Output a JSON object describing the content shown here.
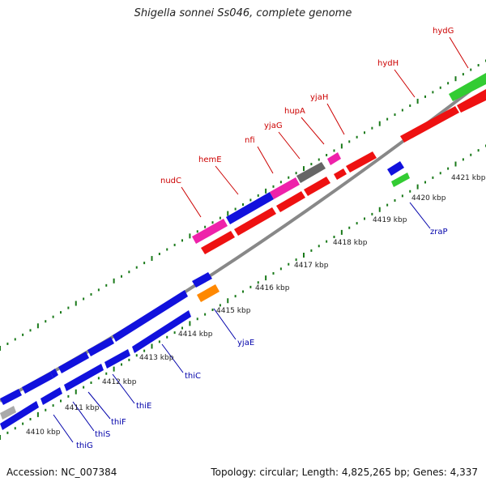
{
  "title": "Shigella sonnei Ss046, complete genome",
  "accession": "Accession: NC_007384",
  "summary": "Topology: circular; Length: 4,825,265 bp; Genes: 4,337",
  "ticks": [
    "4410 kbp",
    "4411 kbp",
    "4412 kbp",
    "4413 kbp",
    "4414 kbp",
    "4415 kbp",
    "4416 kbp",
    "4417 kbp",
    "4418 kbp",
    "4419 kbp",
    "4420 kbp",
    "4421 kbp"
  ],
  "labels_top": [
    "nudC",
    "hemE",
    "nfi",
    "yjaG",
    "hupA",
    "yjaH",
    "hydH",
    "hydG"
  ],
  "labels_bottom": [
    "thiG",
    "thiS",
    "thiF",
    "thiE",
    "thiC",
    "yjaE",
    "zraP"
  ],
  "colors": {
    "forward_cds": "#ee1111",
    "reverse_cds": "#1111dd",
    "pink_feature": "#ee22aa",
    "gray_feature": "#666666",
    "orange_feature": "#ff8800",
    "green_feature": "#33cc33",
    "top_label": "#cc0000",
    "bottom_label": "#0000aa",
    "tick": "#1a7a1a"
  }
}
